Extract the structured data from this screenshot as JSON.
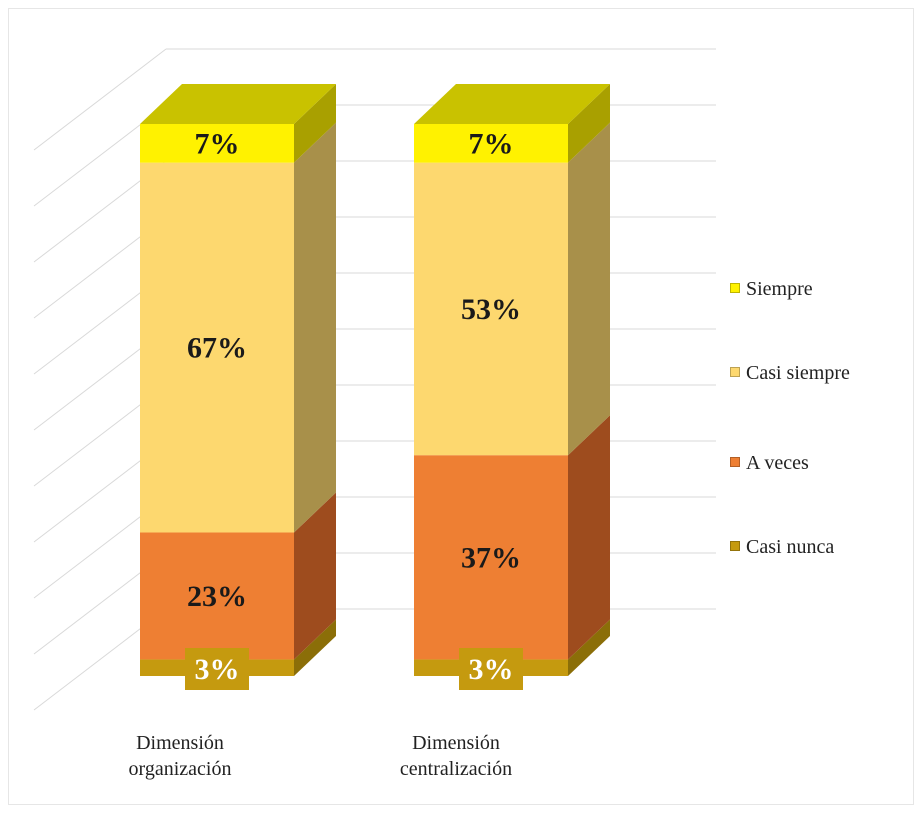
{
  "chart_data": {
    "type": "bar",
    "stacked": true,
    "percent": true,
    "three_d": true,
    "title": "",
    "xlabel": "",
    "ylabel": "",
    "ylim": [
      0,
      100
    ],
    "grid": true,
    "legend_position": "right",
    "categories": [
      "Dimensión organización",
      "Dimensión centralización"
    ],
    "category_lines": [
      [
        "Dimensión",
        "organización"
      ],
      [
        "Dimensión",
        "centralización"
      ]
    ],
    "series": [
      {
        "name": "Casi nunca",
        "values": [
          3,
          3
        ],
        "labels": [
          "3%",
          "3%"
        ],
        "color": "#C59A0F",
        "side_color": "#8B6E08",
        "top_color": "#A8830B",
        "label_color": "#ffffff"
      },
      {
        "name": "A veces",
        "values": [
          23,
          37
        ],
        "labels": [
          "23%",
          "37%"
        ],
        "color": "#EE7F33",
        "side_color": "#9E4C1E",
        "top_color": "#C4622A",
        "label_color": "#1a1a1a"
      },
      {
        "name": "Casi siempre",
        "values": [
          67,
          53
        ],
        "labels": [
          "67%",
          "53%"
        ],
        "color": "#FDD86F",
        "side_color": "#A8904A",
        "top_color": "#D8B75A",
        "label_color": "#1a1a1a"
      },
      {
        "name": "Siempre",
        "values": [
          7,
          7
        ],
        "labels": [
          "7%",
          "7%"
        ],
        "color": "#FFF200",
        "side_color": "#A9A000",
        "top_color": "#C9C200",
        "label_color": "#1a1a1a"
      }
    ],
    "legend": [
      {
        "label": "Siempre",
        "color": "#FFF200"
      },
      {
        "label": "Casi siempre",
        "color": "#FDD86F"
      },
      {
        "label": "A veces",
        "color": "#EE7F33"
      },
      {
        "label": "Casi nunca",
        "color": "#C59A0F"
      }
    ]
  }
}
